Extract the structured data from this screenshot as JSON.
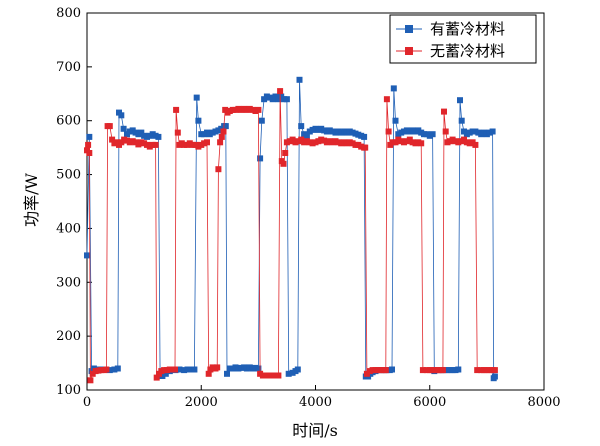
{
  "chart_data": {
    "type": "line",
    "xlabel": "时间/s",
    "ylabel": "功率/W",
    "xlim": [
      0,
      8000
    ],
    "ylim": [
      100,
      800
    ],
    "x_ticks": [
      0,
      2000,
      4000,
      6000,
      8000
    ],
    "y_ticks": [
      100,
      200,
      300,
      400,
      500,
      600,
      700,
      800
    ],
    "grid": false,
    "legend_position": "top-right",
    "series": [
      {
        "name": "有蓄冷材料",
        "color": "#1f5fb5",
        "marker": "square",
        "points": [
          [
            0,
            350
          ],
          [
            40,
            570
          ],
          [
            80,
            135
          ],
          [
            120,
            140
          ],
          [
            200,
            138
          ],
          [
            300,
            138
          ],
          [
            400,
            137
          ],
          [
            480,
            138
          ],
          [
            540,
            140
          ],
          [
            560,
            615
          ],
          [
            600,
            610
          ],
          [
            640,
            585
          ],
          [
            700,
            575
          ],
          [
            750,
            580
          ],
          [
            800,
            582
          ],
          [
            850,
            578
          ],
          [
            900,
            575
          ],
          [
            950,
            578
          ],
          [
            1000,
            572
          ],
          [
            1050,
            570
          ],
          [
            1100,
            572
          ],
          [
            1150,
            575
          ],
          [
            1200,
            572
          ],
          [
            1250,
            570
          ],
          [
            1280,
            128
          ],
          [
            1320,
            126
          ],
          [
            1380,
            130
          ],
          [
            1450,
            135
          ],
          [
            1500,
            138
          ],
          [
            1550,
            137
          ],
          [
            1620,
            138
          ],
          [
            1700,
            137
          ],
          [
            1760,
            138
          ],
          [
            1820,
            138
          ],
          [
            1880,
            138
          ],
          [
            1920,
            643
          ],
          [
            1950,
            600
          ],
          [
            2000,
            575
          ],
          [
            2050,
            575
          ],
          [
            2100,
            578
          ],
          [
            2150,
            575
          ],
          [
            2200,
            578
          ],
          [
            2250,
            580
          ],
          [
            2300,
            582
          ],
          [
            2350,
            585
          ],
          [
            2400,
            590
          ],
          [
            2430,
            590
          ],
          [
            2450,
            130
          ],
          [
            2500,
            140
          ],
          [
            2550,
            140
          ],
          [
            2600,
            142
          ],
          [
            2650,
            140
          ],
          [
            2700,
            141
          ],
          [
            2750,
            142
          ],
          [
            2800,
            140
          ],
          [
            2850,
            142
          ],
          [
            2900,
            140
          ],
          [
            2950,
            141
          ],
          [
            3000,
            140
          ],
          [
            3030,
            530
          ],
          [
            3060,
            600
          ],
          [
            3100,
            640
          ],
          [
            3150,
            645
          ],
          [
            3200,
            643
          ],
          [
            3250,
            640
          ],
          [
            3300,
            645
          ],
          [
            3350,
            640
          ],
          [
            3400,
            645
          ],
          [
            3450,
            640
          ],
          [
            3500,
            640
          ],
          [
            3530,
            130
          ],
          [
            3600,
            132
          ],
          [
            3650,
            135
          ],
          [
            3690,
            138
          ],
          [
            3720,
            676
          ],
          [
            3750,
            590
          ],
          [
            3800,
            575
          ],
          [
            3850,
            572
          ],
          [
            3900,
            580
          ],
          [
            3950,
            583
          ],
          [
            4000,
            585
          ],
          [
            4050,
            583
          ],
          [
            4100,
            585
          ],
          [
            4150,
            582
          ],
          [
            4200,
            580
          ],
          [
            4250,
            582
          ],
          [
            4300,
            580
          ],
          [
            4350,
            578
          ],
          [
            4400,
            580
          ],
          [
            4450,
            578
          ],
          [
            4500,
            580
          ],
          [
            4550,
            578
          ],
          [
            4600,
            580
          ],
          [
            4650,
            578
          ],
          [
            4700,
            576
          ],
          [
            4750,
            574
          ],
          [
            4800,
            572
          ],
          [
            4850,
            570
          ],
          [
            4880,
            125
          ],
          [
            4920,
            125
          ],
          [
            4960,
            130
          ],
          [
            5000,
            133
          ],
          [
            5050,
            135
          ],
          [
            5100,
            137
          ],
          [
            5150,
            137
          ],
          [
            5200,
            137
          ],
          [
            5250,
            137
          ],
          [
            5300,
            137
          ],
          [
            5340,
            138
          ],
          [
            5370,
            660
          ],
          [
            5400,
            600
          ],
          [
            5450,
            575
          ],
          [
            5500,
            578
          ],
          [
            5550,
            580
          ],
          [
            5600,
            582
          ],
          [
            5650,
            580
          ],
          [
            5700,
            582
          ],
          [
            5750,
            580
          ],
          [
            5800,
            582
          ],
          [
            5850,
            578
          ],
          [
            5900,
            575
          ],
          [
            5950,
            575
          ],
          [
            6000,
            572
          ],
          [
            6050,
            575
          ],
          [
            6080,
            135
          ],
          [
            6150,
            137
          ],
          [
            6200,
            137
          ],
          [
            6250,
            137
          ],
          [
            6300,
            137
          ],
          [
            6350,
            137
          ],
          [
            6400,
            137
          ],
          [
            6450,
            137
          ],
          [
            6500,
            138
          ],
          [
            6530,
            638
          ],
          [
            6560,
            600
          ],
          [
            6600,
            580
          ],
          [
            6650,
            575
          ],
          [
            6700,
            578
          ],
          [
            6750,
            580
          ],
          [
            6800,
            580
          ],
          [
            6850,
            578
          ],
          [
            6900,
            575
          ],
          [
            6950,
            578
          ],
          [
            7000,
            575
          ],
          [
            7050,
            578
          ],
          [
            7100,
            580
          ],
          [
            7120,
            122
          ],
          [
            7140,
            125
          ]
        ]
      },
      {
        "name": "无蓄冷材料",
        "color": "#e0262b",
        "marker": "square",
        "points": [
          [
            0,
            545
          ],
          [
            20,
            555
          ],
          [
            40,
            540
          ],
          [
            60,
            118
          ],
          [
            100,
            130
          ],
          [
            150,
            135
          ],
          [
            200,
            136
          ],
          [
            250,
            137
          ],
          [
            300,
            137
          ],
          [
            340,
            138
          ],
          [
            360,
            590
          ],
          [
            400,
            590
          ],
          [
            440,
            565
          ],
          [
            480,
            558
          ],
          [
            520,
            560
          ],
          [
            560,
            555
          ],
          [
            600,
            560
          ],
          [
            650,
            565
          ],
          [
            700,
            563
          ],
          [
            750,
            560
          ],
          [
            800,
            562
          ],
          [
            850,
            560
          ],
          [
            900,
            556
          ],
          [
            950,
            560
          ],
          [
            1000,
            558
          ],
          [
            1050,
            555
          ],
          [
            1100,
            552
          ],
          [
            1150,
            555
          ],
          [
            1200,
            555
          ],
          [
            1220,
            123
          ],
          [
            1260,
            130
          ],
          [
            1300,
            135
          ],
          [
            1350,
            137
          ],
          [
            1400,
            137
          ],
          [
            1450,
            138
          ],
          [
            1500,
            138
          ],
          [
            1540,
            138
          ],
          [
            1560,
            620
          ],
          [
            1590,
            578
          ],
          [
            1620,
            555
          ],
          [
            1660,
            558
          ],
          [
            1700,
            555
          ],
          [
            1750,
            555
          ],
          [
            1800,
            558
          ],
          [
            1850,
            555
          ],
          [
            1900,
            555
          ],
          [
            1950,
            552
          ],
          [
            2000,
            555
          ],
          [
            2050,
            558
          ],
          [
            2100,
            560
          ],
          [
            2130,
            130
          ],
          [
            2160,
            138
          ],
          [
            2200,
            142
          ],
          [
            2250,
            140
          ],
          [
            2280,
            142
          ],
          [
            2300,
            510
          ],
          [
            2330,
            560
          ],
          [
            2360,
            570
          ],
          [
            2390,
            580
          ],
          [
            2420,
            620
          ],
          [
            2460,
            615
          ],
          [
            2500,
            618
          ],
          [
            2550,
            620
          ],
          [
            2600,
            620
          ],
          [
            2650,
            622
          ],
          [
            2700,
            620
          ],
          [
            2750,
            622
          ],
          [
            2800,
            620
          ],
          [
            2850,
            622
          ],
          [
            2900,
            620
          ],
          [
            2950,
            618
          ],
          [
            3000,
            620
          ],
          [
            3030,
            130
          ],
          [
            3080,
            127
          ],
          [
            3130,
            127
          ],
          [
            3180,
            127
          ],
          [
            3230,
            127
          ],
          [
            3280,
            127
          ],
          [
            3320,
            127
          ],
          [
            3350,
            127
          ],
          [
            3380,
            655
          ],
          [
            3410,
            525
          ],
          [
            3440,
            520
          ],
          [
            3470,
            540
          ],
          [
            3500,
            560
          ],
          [
            3550,
            562
          ],
          [
            3600,
            565
          ],
          [
            3650,
            560
          ],
          [
            3700,
            562
          ],
          [
            3750,
            565
          ],
          [
            3800,
            560
          ],
          [
            3850,
            562
          ],
          [
            3900,
            560
          ],
          [
            3950,
            558
          ],
          [
            4000,
            560
          ],
          [
            4050,
            562
          ],
          [
            4100,
            565
          ],
          [
            4150,
            563
          ],
          [
            4200,
            560
          ],
          [
            4250,
            562
          ],
          [
            4300,
            560
          ],
          [
            4350,
            562
          ],
          [
            4400,
            560
          ],
          [
            4450,
            558
          ],
          [
            4500,
            560
          ],
          [
            4550,
            558
          ],
          [
            4600,
            560
          ],
          [
            4650,
            558
          ],
          [
            4700,
            555
          ],
          [
            4750,
            555
          ],
          [
            4800,
            552
          ],
          [
            4850,
            550
          ],
          [
            4870,
            550
          ],
          [
            4900,
            130
          ],
          [
            4950,
            135
          ],
          [
            5000,
            137
          ],
          [
            5050,
            137
          ],
          [
            5100,
            137
          ],
          [
            5150,
            137
          ],
          [
            5200,
            137
          ],
          [
            5230,
            137
          ],
          [
            5250,
            640
          ],
          [
            5280,
            580
          ],
          [
            5310,
            555
          ],
          [
            5350,
            560
          ],
          [
            5400,
            560
          ],
          [
            5450,
            565
          ],
          [
            5500,
            562
          ],
          [
            5550,
            560
          ],
          [
            5600,
            562
          ],
          [
            5650,
            565
          ],
          [
            5700,
            560
          ],
          [
            5750,
            558
          ],
          [
            5800,
            560
          ],
          [
            5850,
            558
          ],
          [
            5880,
            137
          ],
          [
            5950,
            137
          ],
          [
            6000,
            137
          ],
          [
            6050,
            137
          ],
          [
            6100,
            137
          ],
          [
            6150,
            137
          ],
          [
            6200,
            137
          ],
          [
            6230,
            137
          ],
          [
            6250,
            617
          ],
          [
            6280,
            580
          ],
          [
            6310,
            560
          ],
          [
            6350,
            562
          ],
          [
            6400,
            565
          ],
          [
            6450,
            562
          ],
          [
            6500,
            560
          ],
          [
            6550,
            562
          ],
          [
            6600,
            565
          ],
          [
            6650,
            560
          ],
          [
            6700,
            558
          ],
          [
            6750,
            560
          ],
          [
            6800,
            555
          ],
          [
            6830,
            137
          ],
          [
            6900,
            137
          ],
          [
            6950,
            137
          ],
          [
            7000,
            137
          ],
          [
            7050,
            137
          ],
          [
            7100,
            137
          ],
          [
            7140,
            137
          ]
        ]
      }
    ]
  }
}
